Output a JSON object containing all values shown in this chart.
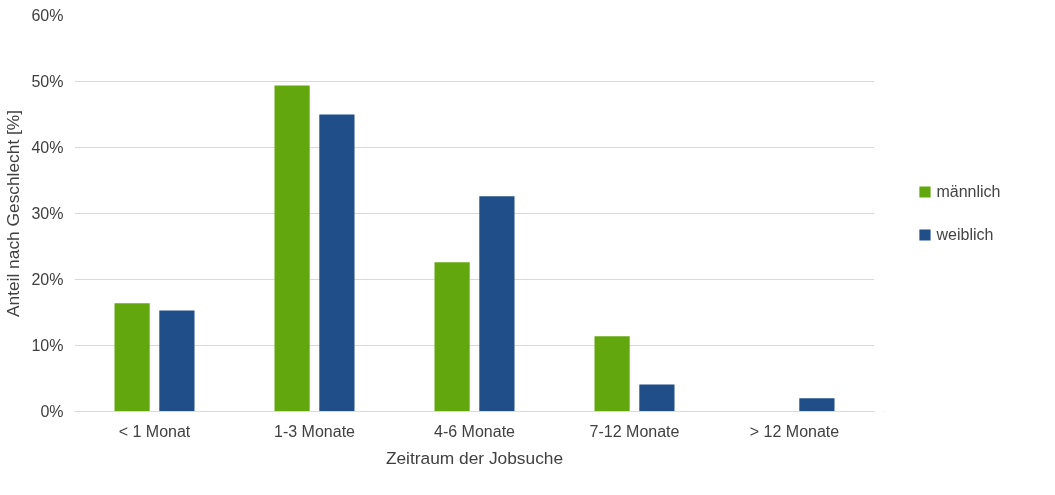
{
  "chart_data": {
    "type": "bar",
    "xlabel": "Zeitraum der Jobsuche",
    "ylabel": "Anteil nach Geschlecht [%]",
    "categories": [
      "< 1 Monat",
      "1-3 Monate",
      "4-6 Monate",
      "7-12 Monate",
      "> 12 Monate"
    ],
    "series": [
      {
        "name": "männlich",
        "color": "#63a70e",
        "values": [
          16.4,
          49.4,
          22.6,
          11.4,
          0
        ]
      },
      {
        "name": "weiblich",
        "color": "#1f4e89",
        "values": [
          15.3,
          45.0,
          32.6,
          4.1,
          2.0
        ]
      }
    ],
    "ylim": [
      0,
      60
    ],
    "yticks": [
      {
        "value": 0,
        "label": "0%"
      },
      {
        "value": 10,
        "label": "10%"
      },
      {
        "value": 20,
        "label": "20%"
      },
      {
        "value": 30,
        "label": "30%"
      },
      {
        "value": 40,
        "label": "40%"
      },
      {
        "value": 50,
        "label": "50%"
      },
      {
        "value": 60,
        "label": "60%"
      }
    ],
    "grid": "y",
    "legend": "right"
  }
}
